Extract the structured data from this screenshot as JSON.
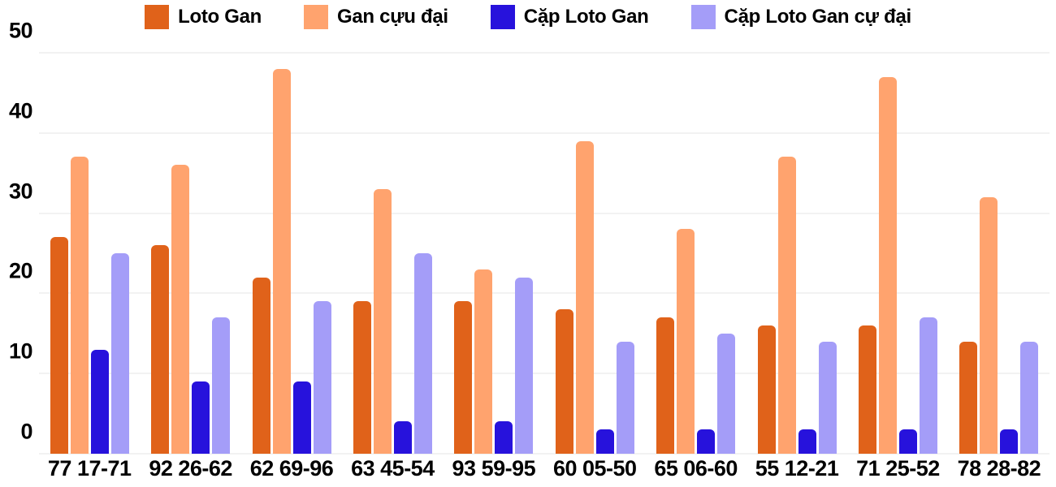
{
  "chart_data": {
    "type": "bar",
    "title": "",
    "xlabel": "",
    "ylabel": "",
    "categories": [
      "77 17-71",
      "92 26-62",
      "62 69-96",
      "63 45-54",
      "93 59-95",
      "60 05-50",
      "65 06-60",
      "55 12-21",
      "71 25-52",
      "78 28-82"
    ],
    "series": [
      {
        "name": "Loto Gan",
        "color": "#e0621a",
        "values": [
          27,
          26,
          22,
          19,
          19,
          18,
          17,
          16,
          16,
          14
        ]
      },
      {
        "name": "Gan cựu đại",
        "color": "#ffa36e",
        "values": [
          37,
          36,
          48,
          33,
          23,
          39,
          28,
          37,
          47,
          32
        ]
      },
      {
        "name": "Cặp Loto Gan",
        "color": "#2712dc",
        "values": [
          13,
          9,
          9,
          4,
          4,
          3,
          3,
          3,
          3,
          3
        ]
      },
      {
        "name": "Cặp Loto Gan cự đại",
        "color": "#a49df8",
        "values": [
          25,
          17,
          19,
          25,
          22,
          14,
          15,
          14,
          17,
          14
        ]
      }
    ],
    "ylim": [
      0,
      50
    ],
    "yticks": [
      0,
      10,
      20,
      30,
      40,
      50
    ],
    "grid": true,
    "legend_position": "top",
    "background": "#ffffff",
    "gridline_color": "#e4e4e4",
    "text_color": "#000000"
  }
}
